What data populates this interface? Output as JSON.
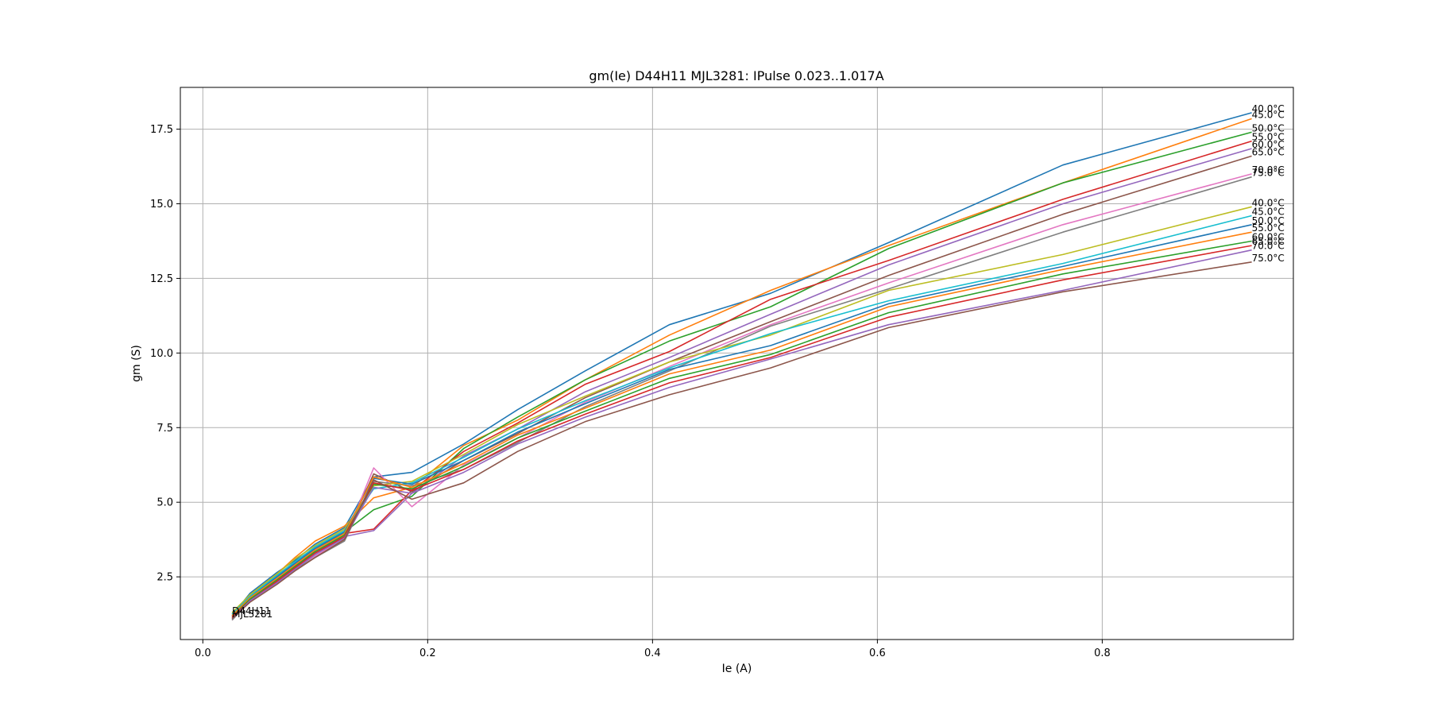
{
  "chart_data": {
    "type": "line",
    "title": "gm(Ie) D44H11 MJL3281: IPulse 0.023..1.017A",
    "xlabel": "Ie (A)",
    "ylabel": "gm (S)",
    "xlim": [
      -0.02,
      0.97
    ],
    "ylim": [
      0.4,
      18.9
    ],
    "grid": true,
    "xticks": [
      0.0,
      0.2,
      0.4,
      0.6,
      0.8
    ],
    "xtick_labels": [
      "0.0",
      "0.2",
      "0.4",
      "0.6",
      "0.8"
    ],
    "yticks": [
      2.5,
      5.0,
      7.5,
      10.0,
      12.5,
      15.0,
      17.5
    ],
    "ytick_labels": [
      "2.5",
      "5.0",
      "7.5",
      "10.0",
      "12.5",
      "15.0",
      "17.5"
    ],
    "group_labels": [
      {
        "text": "D44H11",
        "x": 0.026,
        "y": 1.25
      },
      {
        "text": "MJL3281",
        "x": 0.026,
        "y": 1.15
      }
    ],
    "x": [
      0.026,
      0.042,
      0.066,
      0.082,
      0.1,
      0.126,
      0.152,
      0.186,
      0.232,
      0.28,
      0.34,
      0.415,
      0.505,
      0.61,
      0.765,
      0.933
    ],
    "series": [
      {
        "name": "40.0°C",
        "color": "#1f77b4",
        "values": [
          1.2,
          1.95,
          2.65,
          3.05,
          3.6,
          4.15,
          5.85,
          6.0,
          6.95,
          8.1,
          9.4,
          10.95,
          12.0,
          13.7,
          16.3,
          18.05
        ]
      },
      {
        "name": "45.0°C",
        "color": "#ff7f0e",
        "values": [
          1.25,
          1.9,
          2.6,
          3.15,
          3.7,
          4.2,
          5.15,
          5.5,
          6.9,
          7.75,
          9.1,
          10.6,
          12.1,
          13.6,
          15.7,
          17.85
        ]
      },
      {
        "name": "50.0°C",
        "color": "#2ca02c",
        "values": [
          1.2,
          1.85,
          2.55,
          3.0,
          3.5,
          4.0,
          4.75,
          5.2,
          6.8,
          7.85,
          9.1,
          10.4,
          11.55,
          13.5,
          15.7,
          17.4
        ]
      },
      {
        "name": "55.0°C",
        "color": "#d62728",
        "values": [
          1.15,
          1.85,
          2.5,
          2.95,
          3.45,
          3.95,
          4.1,
          5.4,
          6.7,
          7.65,
          8.95,
          10.05,
          11.8,
          13.1,
          15.15,
          17.1
        ]
      },
      {
        "name": "60.0°C",
        "color": "#9467bd",
        "values": [
          1.1,
          1.8,
          2.45,
          2.9,
          3.35,
          3.85,
          4.05,
          5.3,
          6.55,
          7.45,
          8.7,
          9.85,
          11.3,
          12.95,
          15.0,
          16.85
        ]
      },
      {
        "name": "65.0°C",
        "color": "#8c564b",
        "values": [
          1.1,
          1.75,
          2.4,
          2.85,
          3.3,
          3.8,
          5.95,
          5.35,
          6.4,
          7.3,
          8.5,
          9.7,
          11.05,
          12.6,
          14.65,
          16.6
        ]
      },
      {
        "name": "70.0°C",
        "color": "#e377c2",
        "values": [
          1.05,
          1.7,
          2.35,
          2.8,
          3.2,
          3.75,
          6.15,
          4.85,
          6.25,
          7.15,
          8.35,
          9.55,
          10.95,
          12.35,
          14.3,
          16.0
        ]
      },
      {
        "name": "75.0°C",
        "color": "#7f7f7f",
        "values": [
          1.05,
          1.7,
          2.3,
          2.75,
          3.15,
          3.7,
          5.7,
          5.55,
          6.1,
          7.0,
          8.2,
          9.4,
          10.9,
          12.15,
          14.05,
          15.9
        ]
      },
      {
        "name": "40.0°C",
        "color": "#bcbd22",
        "values": [
          1.3,
          1.9,
          2.6,
          3.1,
          3.55,
          4.1,
          5.55,
          5.7,
          6.6,
          7.6,
          8.55,
          9.7,
          10.6,
          12.1,
          13.3,
          14.9
        ]
      },
      {
        "name": "45.0°C",
        "color": "#17becf",
        "values": [
          1.25,
          1.85,
          2.55,
          3.0,
          3.5,
          4.05,
          5.45,
          5.65,
          6.5,
          7.45,
          8.4,
          9.5,
          10.65,
          11.75,
          13.0,
          14.6
        ]
      },
      {
        "name": "50.0°C",
        "color": "#1f77b4",
        "values": [
          1.2,
          1.8,
          2.5,
          2.95,
          3.45,
          4.0,
          5.8,
          5.6,
          6.4,
          7.35,
          8.3,
          9.45,
          10.25,
          11.65,
          12.9,
          14.3
        ]
      },
      {
        "name": "55.0°C",
        "color": "#ff7f0e",
        "values": [
          1.2,
          1.8,
          2.45,
          2.9,
          3.4,
          3.95,
          5.85,
          5.5,
          6.3,
          7.25,
          8.15,
          9.3,
          10.1,
          11.55,
          12.8,
          14.05
        ]
      },
      {
        "name": "60.0°C",
        "color": "#2ca02c",
        "values": [
          1.15,
          1.75,
          2.4,
          2.85,
          3.35,
          3.9,
          5.6,
          5.45,
          6.2,
          7.15,
          8.05,
          9.15,
          9.95,
          11.35,
          12.65,
          13.75
        ]
      },
      {
        "name": "65.0°C",
        "color": "#d62728",
        "values": [
          1.15,
          1.7,
          2.35,
          2.8,
          3.3,
          3.85,
          5.65,
          5.4,
          6.1,
          7.05,
          7.95,
          9.0,
          9.85,
          11.2,
          12.45,
          13.6
        ]
      },
      {
        "name": "70.0°C",
        "color": "#9467bd",
        "values": [
          1.1,
          1.7,
          2.3,
          2.75,
          3.25,
          3.8,
          5.5,
          5.3,
          6.0,
          6.95,
          7.85,
          8.85,
          9.8,
          10.95,
          12.1,
          13.45
        ]
      },
      {
        "name": "75.0°C",
        "color": "#8c564b",
        "values": [
          1.1,
          1.65,
          2.25,
          2.7,
          3.15,
          3.75,
          5.75,
          5.1,
          5.65,
          6.7,
          7.7,
          8.6,
          9.5,
          10.85,
          12.05,
          13.05
        ]
      }
    ]
  }
}
